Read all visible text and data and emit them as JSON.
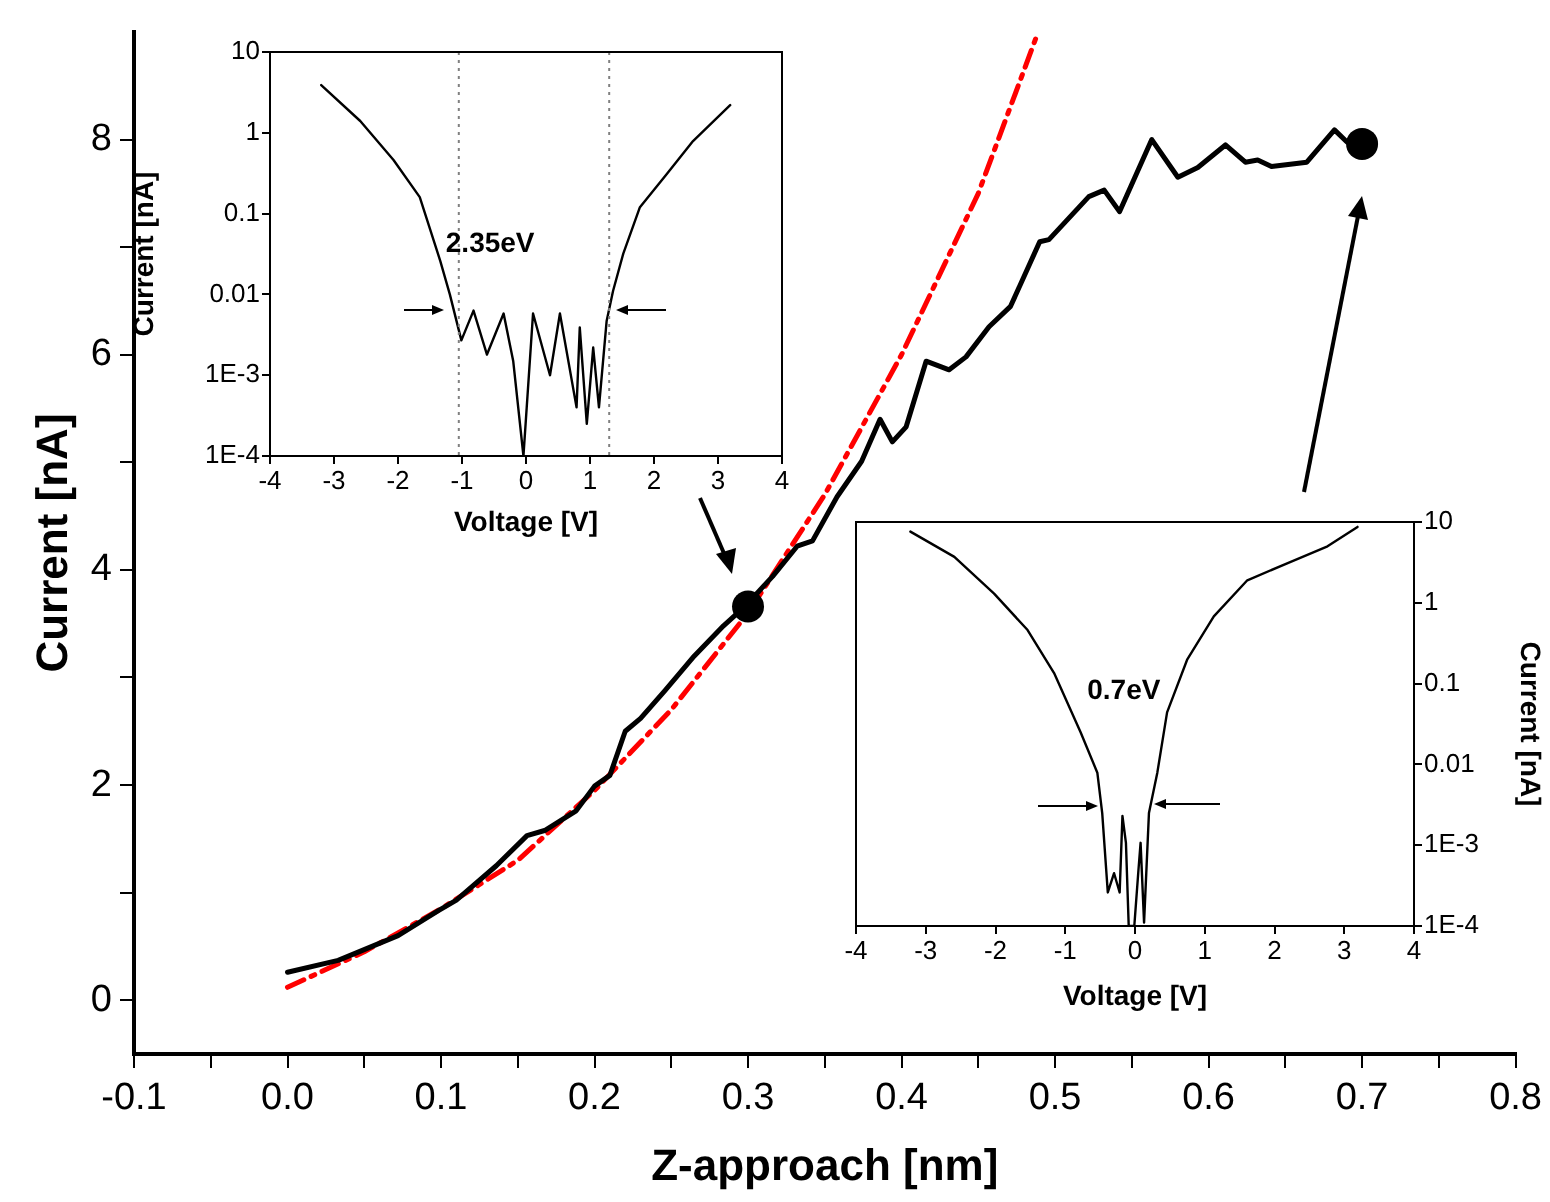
{
  "chart_data": [
    {
      "type": "line",
      "xlabel": "Z-approach [nm]",
      "ylabel": "Current [nA]",
      "xlim": [
        -0.1,
        0.8
      ],
      "ylim": [
        -0.5,
        9
      ],
      "xticks": [
        -0.1,
        {
          "value": -0.05,
          "label": null
        },
        {
          "value": 0,
          "label": "0.0"
        },
        {
          "value": 0.05,
          "label": null
        },
        0.1,
        {
          "value": 0.15,
          "label": null
        },
        0.2,
        {
          "value": 0.25,
          "label": null
        },
        0.3,
        {
          "value": 0.35,
          "label": null
        },
        0.4,
        {
          "value": 0.45,
          "label": null
        },
        0.5,
        {
          "value": 0.55,
          "label": null
        },
        0.6,
        {
          "value": 0.65,
          "label": null
        },
        0.7,
        {
          "value": 0.75,
          "label": null
        },
        0.8
      ],
      "yticks": [
        0,
        {
          "value": 1,
          "label": null
        },
        2,
        {
          "value": 3,
          "label": null
        },
        4,
        {
          "value": 5,
          "label": null
        },
        6,
        {
          "value": 7,
          "label": null
        },
        8
      ],
      "grid": false,
      "legend": false,
      "marker": "none",
      "series": [
        {
          "color": "#000000",
          "line_style": "solid",
          "x": [
            0.0,
            0.033,
            0.072,
            0.098,
            0.11,
            0.136,
            0.156,
            0.168,
            0.188,
            0.2,
            0.21,
            0.22,
            0.23,
            0.246,
            0.265,
            0.284,
            0.298,
            0.316,
            0.332,
            0.342,
            0.358,
            0.374,
            0.386,
            0.394,
            0.403,
            0.416,
            0.431,
            0.442,
            0.457,
            0.471,
            0.49,
            0.496,
            0.522,
            0.532,
            0.542,
            0.563,
            0.58,
            0.593,
            0.611,
            0.624,
            0.632,
            0.641,
            0.664,
            0.682,
            0.69
          ],
          "values": [
            0.26,
            0.37,
            0.6,
            0.83,
            0.93,
            1.25,
            1.53,
            1.58,
            1.76,
            1.99,
            2.09,
            2.5,
            2.62,
            2.88,
            3.2,
            3.48,
            3.66,
            3.94,
            4.22,
            4.27,
            4.68,
            5.01,
            5.4,
            5.19,
            5.33,
            5.94,
            5.86,
            5.98,
            6.26,
            6.45,
            7.05,
            7.07,
            7.47,
            7.53,
            7.33,
            8.0,
            7.65,
            7.74,
            7.95,
            7.79,
            7.81,
            7.75,
            7.79,
            8.09,
            7.98
          ]
        },
        {
          "type": "line",
          "color": "#ff0000",
          "line_style": "dashed",
          "x": [
            0.0,
            0.05,
            0.1,
            0.15,
            0.2,
            0.25,
            0.3,
            0.35,
            0.4,
            0.45,
            0.489
          ],
          "values": [
            0.12,
            0.45,
            0.85,
            1.3,
            1.95,
            2.7,
            3.6,
            4.7,
            6.0,
            7.5,
            9.0
          ]
        },
        {
          "type": "scatter",
          "color": "#000000",
          "marker": "circle",
          "x": [
            0.3,
            0.7
          ],
          "values": [
            3.66,
            7.96
          ]
        }
      ]
    },
    {
      "type": "line",
      "log": "y",
      "xlabel": "Voltage [V]",
      "ylabel": "Current [nA]",
      "xlim": [
        -4,
        4
      ],
      "xticks": [
        -4,
        -3,
        -2,
        -1,
        0,
        1,
        2,
        3,
        4
      ],
      "ylim": [
        0.0001,
        10
      ],
      "yticks": [
        10,
        1,
        0.1,
        0.01,
        {
          "value": 0.001,
          "label": "1E-3"
        },
        {
          "value": 0.0001,
          "label": "1E-4"
        }
      ],
      "grid": false,
      "legend": false,
      "marker": "none",
      "ref_lines": [
        {
          "axis": "x",
          "value": -1.05,
          "color": "#808080",
          "line_style": "dotted"
        },
        {
          "axis": "x",
          "value": 1.3,
          "color": "#808080",
          "line_style": "dotted"
        }
      ],
      "annotations": [
        "2.35eV"
      ],
      "series": [
        {
          "color": "#000000",
          "line_style": "solid",
          "x": [
            -3.2,
            -2.59,
            -2.07,
            -1.66,
            -1.34,
            -1.19,
            -1.01,
            -0.82,
            -0.61,
            -0.35,
            -0.2,
            -0.04,
            0.11,
            0.375,
            0.53,
            0.79,
            0.84,
            0.95,
            1.05,
            1.14,
            1.26,
            1.36,
            1.52,
            1.78,
            2.2,
            2.61,
            3.19
          ],
          "values": [
            3.9,
            1.4,
            0.46,
            0.16,
            0.026,
            0.01,
            0.0027,
            0.0063,
            0.0018,
            0.0058,
            0.0015,
            0.0001,
            0.0058,
            0.001,
            0.0058,
            0.0004,
            0.0039,
            0.00025,
            0.0022,
            0.0004,
            0.0047,
            0.011,
            0.032,
            0.12,
            0.31,
            0.79,
            2.2
          ]
        }
      ]
    },
    {
      "type": "line",
      "log": "y2",
      "xlabel": "Voltage [V]",
      "y2label": "Current [nA]",
      "xlim": [
        -4,
        4
      ],
      "xticks": [
        -4,
        -3,
        -2,
        -1,
        0,
        1,
        2,
        3,
        4
      ],
      "y2lim": [
        0.0001,
        10
      ],
      "y2ticks": [
        10,
        1,
        0.1,
        0.01,
        {
          "value": 0.001,
          "label": "1E-3"
        },
        {
          "value": 0.0001,
          "label": "1E-4"
        }
      ],
      "grid": false,
      "legend": false,
      "marker": "none",
      "annotations": [
        "0.7eV"
      ],
      "series": [
        {
          "color": "#000000",
          "line_style": "solid",
          "axis": "y2",
          "x": [
            -3.22,
            -2.59,
            -2.02,
            -1.54,
            -1.16,
            -0.78,
            -0.54,
            -0.47,
            -0.39,
            -0.3,
            -0.22,
            -0.18,
            -0.13,
            -0.09,
            -0.01,
            0.05,
            0.08,
            0.13,
            0.2,
            0.32,
            0.46,
            0.75,
            1.13,
            1.61,
            2.19,
            2.76,
            3.19
          ],
          "values": [
            7.6,
            3.7,
            1.3,
            0.46,
            0.135,
            0.025,
            0.0079,
            0.0025,
            0.00026,
            0.00045,
            0.00026,
            0.0023,
            0.00107,
            0.0001,
            0.0001,
            0.0005,
            0.00107,
            0.00011,
            0.0025,
            0.0079,
            0.044,
            0.2,
            0.68,
            1.9,
            3.1,
            5,
            8.7
          ]
        }
      ]
    }
  ]
}
